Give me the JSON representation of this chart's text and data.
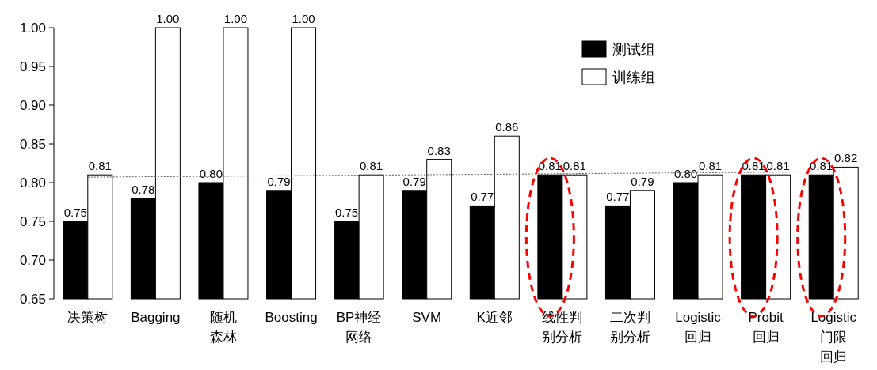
{
  "chart_data": {
    "type": "bar",
    "categories": [
      "决策树",
      "Bagging",
      "随机森林",
      "Boosting",
      "BP神经网络",
      "SVM",
      "K近邻",
      "线性判别分析",
      "二次判别分析",
      "Logistic\n回归",
      "Probit\n回归",
      "Logistic\n门限回归"
    ],
    "series": [
      {
        "name": "测试组",
        "color": "#000000",
        "values": [
          0.75,
          0.78,
          0.8,
          0.79,
          0.75,
          0.79,
          0.77,
          0.81,
          0.77,
          0.8,
          0.81,
          0.81
        ],
        "value_labels": [
          "0.75",
          "0.78",
          "0.80",
          "0.79",
          "0.75",
          "0.79",
          "0.77",
          "0.81",
          "0.77",
          "0.80",
          "0.81",
          "0.81"
        ]
      },
      {
        "name": "训练组",
        "color": "#ffffff",
        "values": [
          0.81,
          1.0,
          1.0,
          1.0,
          0.81,
          0.83,
          0.86,
          0.81,
          0.79,
          0.81,
          0.81,
          0.82
        ],
        "value_labels": [
          "0.81",
          "1.00",
          "1.00",
          "1.00",
          "0.81",
          "0.83",
          "0.86",
          "0.81",
          "0.79",
          "0.81",
          "0.81",
          "0.82"
        ]
      },
      {
        "type": "line",
        "color": "#555555",
        "line_style": "dotted",
        "values": [
          0.807,
          null,
          null,
          null,
          null,
          null,
          null,
          null,
          null,
          null,
          null,
          0.814
        ]
      }
    ],
    "ylim": [
      0.65,
      1.0
    ],
    "yticks": [
      0.65,
      {
        "value": 0.7,
        "label": "0.70"
      },
      0.75,
      {
        "value": 0.8,
        "label": "0.80"
      },
      0.85,
      {
        "value": 0.9,
        "label": "0.90"
      },
      0.95,
      {
        "value": 1.0,
        "label": "1.00"
      }
    ],
    "grid": false,
    "legend": "top right"
  }
}
